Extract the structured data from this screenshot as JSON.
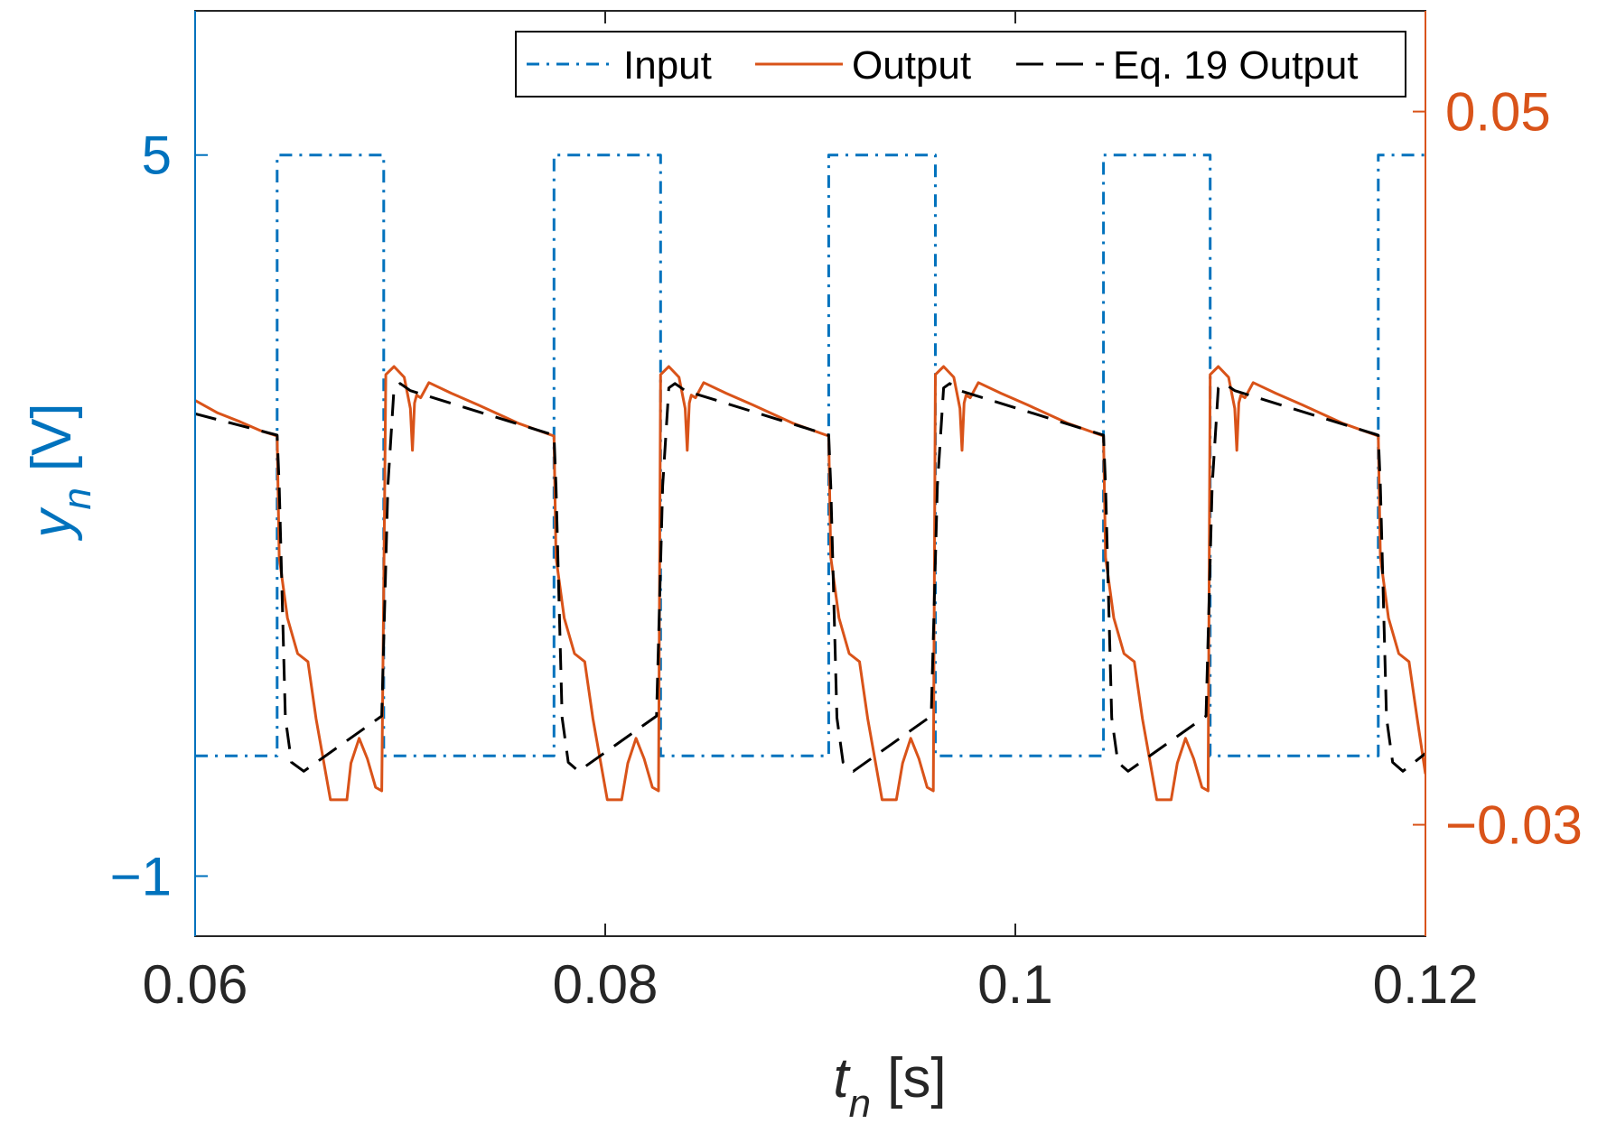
{
  "chart_data": {
    "type": "line",
    "title": "",
    "xlabel": {
      "main": "t",
      "sub": "n",
      "unit": "[s]"
    },
    "ylabel_left": {
      "main": "y",
      "sub": "n",
      "unit": "[V]"
    },
    "xlim": [
      0.06,
      0.12
    ],
    "ylim_left": [
      -1.5,
      6.2
    ],
    "ylim_right": [
      -0.0425,
      0.0613
    ],
    "x_ticks": [
      {
        "value": 0.06,
        "label": "0.06"
      },
      {
        "value": 0.08,
        "label": "0.08"
      },
      {
        "value": 0.1,
        "label": "0.1"
      },
      {
        "value": 0.12,
        "label": "0.12"
      }
    ],
    "y_left_ticks": [
      {
        "value": 5,
        "label": "5"
      },
      {
        "value": -1,
        "label": "−1"
      }
    ],
    "y_right_ticks": [
      {
        "value": 0.05,
        "label": "0.05"
      },
      {
        "value": -0.03,
        "label": "−0.03"
      }
    ],
    "legend": {
      "position": "top-right",
      "entries": [
        {
          "key": "input",
          "label": "Input"
        },
        {
          "key": "output",
          "label": "Output"
        },
        {
          "key": "eq19",
          "label": "Eq. 19 Output"
        }
      ]
    },
    "colors": {
      "input": "#0072BD",
      "output": "#D95319",
      "eq19": "#000000",
      "left_axis": "#0072BD",
      "right_axis": "#D95319",
      "frame": "#262626"
    },
    "series": [
      {
        "name": "Input",
        "key": "input",
        "axis": "left",
        "style": "dashdot",
        "x": [
          0.06,
          0.064,
          0.064,
          0.0692,
          0.0692,
          0.0775,
          0.0775,
          0.0827,
          0.0827,
          0.0909,
          0.0909,
          0.0961,
          0.0961,
          0.1043,
          0.1043,
          0.1095,
          0.1095,
          0.1177,
          0.1177,
          0.12
        ],
        "y": [
          0.0,
          0.0,
          5.0,
          5.0,
          0.0,
          0.0,
          5.0,
          5.0,
          0.0,
          0.0,
          5.0,
          5.0,
          0.0,
          0.0,
          5.0,
          5.0,
          0.0,
          0.0,
          5.0,
          5.0
        ]
      },
      {
        "name": "Output",
        "key": "output",
        "axis": "right",
        "style": "solid",
        "x": [
          0.06,
          0.0611,
          0.0622,
          0.0632,
          0.064,
          0.0641,
          0.0645,
          0.065,
          0.0655,
          0.0659,
          0.0666,
          0.0674,
          0.0676,
          0.068,
          0.0684,
          0.0688,
          0.0691,
          0.0693,
          0.0697,
          0.0702,
          0.0705,
          0.0706,
          0.0707,
          0.0708,
          0.071,
          0.0714,
          0.0725,
          0.0738,
          0.0758,
          0.0775,
          0.0776,
          0.078,
          0.0785,
          0.079,
          0.0794,
          0.0801,
          0.0808,
          0.0811,
          0.0815,
          0.0819,
          0.0823,
          0.0826,
          0.0827,
          0.0831,
          0.0836,
          0.0839,
          0.084,
          0.0841,
          0.0842,
          0.0844,
          0.0848,
          0.0859,
          0.0872,
          0.0892,
          0.0909,
          0.091,
          0.0914,
          0.0919,
          0.0924,
          0.0928,
          0.0935,
          0.0942,
          0.0945,
          0.0949,
          0.0953,
          0.0957,
          0.096,
          0.0961,
          0.0965,
          0.097,
          0.0973,
          0.0974,
          0.0975,
          0.0976,
          0.0978,
          0.0982,
          0.0993,
          0.1006,
          0.1026,
          0.1043,
          0.1044,
          0.1048,
          0.1053,
          0.1058,
          0.1062,
          0.1069,
          0.1076,
          0.1079,
          0.1083,
          0.1087,
          0.1091,
          0.1094,
          0.1095,
          0.1099,
          0.1104,
          0.1107,
          0.1108,
          0.1109,
          0.111,
          0.1112,
          0.1116,
          0.1127,
          0.114,
          0.116,
          0.1177,
          0.1178,
          0.1182,
          0.1187,
          0.1192,
          0.1196,
          0.12
        ],
        "y": [
          0.0176,
          0.0162,
          0.0152,
          0.0142,
          0.0136,
          0.0,
          -0.0068,
          -0.0108,
          -0.0117,
          -0.0181,
          -0.0272,
          -0.0272,
          -0.0231,
          -0.0203,
          -0.0226,
          -0.0258,
          -0.0262,
          0.0205,
          0.0214,
          0.0202,
          0.0167,
          0.012,
          0.0173,
          0.0182,
          0.0179,
          0.0196,
          0.0184,
          0.0171,
          0.015,
          0.0136,
          0.0,
          -0.0068,
          -0.0108,
          -0.0117,
          -0.0181,
          -0.0272,
          -0.0272,
          -0.0231,
          -0.0203,
          -0.0226,
          -0.0258,
          -0.0262,
          0.0205,
          0.0214,
          0.0202,
          0.0167,
          0.012,
          0.0173,
          0.0182,
          0.0179,
          0.0196,
          0.0184,
          0.0171,
          0.015,
          0.0136,
          0.0,
          -0.0068,
          -0.0108,
          -0.0117,
          -0.0181,
          -0.0272,
          -0.0272,
          -0.0231,
          -0.0203,
          -0.0226,
          -0.0258,
          -0.0262,
          0.0205,
          0.0214,
          0.0202,
          0.0167,
          0.012,
          0.0173,
          0.0182,
          0.0179,
          0.0196,
          0.0184,
          0.0171,
          0.015,
          0.0136,
          0.0,
          -0.0068,
          -0.0108,
          -0.0117,
          -0.0181,
          -0.0272,
          -0.0272,
          -0.0231,
          -0.0203,
          -0.0226,
          -0.0258,
          -0.0262,
          0.0205,
          0.0214,
          0.0202,
          0.0167,
          0.012,
          0.0173,
          0.0182,
          0.0179,
          0.0196,
          0.0184,
          0.0171,
          0.015,
          0.0136,
          0.0,
          -0.0068,
          -0.0108,
          -0.0117,
          -0.0181,
          -0.0243
        ]
      },
      {
        "name": "Eq. 19 Output",
        "key": "eq19",
        "axis": "right",
        "style": "dashed",
        "x": [
          0.06,
          0.064,
          0.0641,
          0.0644,
          0.0647,
          0.0653,
          0.0691,
          0.0694,
          0.0697,
          0.07,
          0.0705,
          0.0775,
          0.0776,
          0.0779,
          0.0782,
          0.0787,
          0.0825,
          0.0828,
          0.0831,
          0.0834,
          0.0839,
          0.0909,
          0.091,
          0.0913,
          0.0916,
          0.0921,
          0.0959,
          0.0962,
          0.0965,
          0.0968,
          0.0973,
          0.1043,
          0.1044,
          0.1047,
          0.105,
          0.1055,
          0.1093,
          0.1096,
          0.1099,
          0.1102,
          0.1107,
          0.1177,
          0.1178,
          0.1181,
          0.1184,
          0.1189,
          0.12
        ],
        "y": [
          0.0161,
          0.0137,
          0.008,
          -0.018,
          -0.023,
          -0.024,
          -0.0178,
          0.008,
          0.019,
          0.0195,
          0.0187,
          0.0137,
          0.008,
          -0.018,
          -0.023,
          -0.024,
          -0.0178,
          0.008,
          0.019,
          0.0195,
          0.0187,
          0.0137,
          0.008,
          -0.018,
          -0.023,
          -0.024,
          -0.0178,
          0.008,
          0.019,
          0.0195,
          0.0187,
          0.0137,
          0.008,
          -0.018,
          -0.023,
          -0.024,
          -0.0178,
          0.008,
          0.019,
          0.0195,
          0.0187,
          0.0137,
          0.008,
          -0.018,
          -0.023,
          -0.024,
          -0.022
        ]
      }
    ]
  }
}
